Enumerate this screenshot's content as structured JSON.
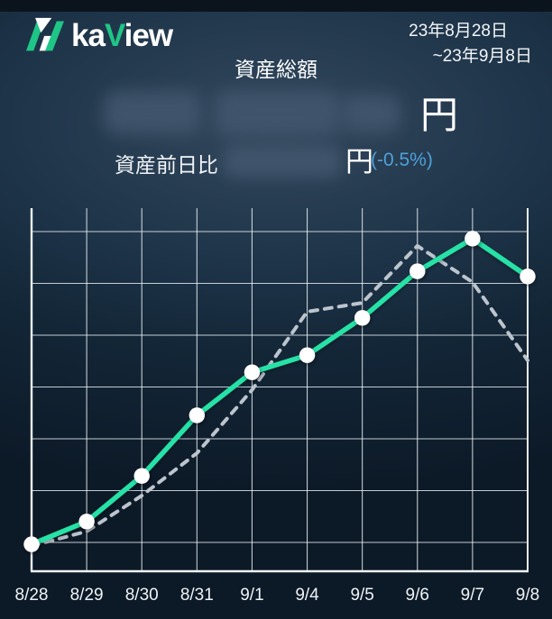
{
  "app": {
    "logo_ka": "ka",
    "logo_v": "V",
    "logo_iew": "iew"
  },
  "header": {
    "date_range_line1": "23年8月28日",
    "date_range_line2": "~23年9月8日"
  },
  "summary": {
    "title": "資産総額",
    "total_unit": "円",
    "total_value_redacted": true,
    "change_label": "資産前日比",
    "change_unit": "円",
    "change_value_redacted": true,
    "change_percent": "(-0.5%)"
  },
  "chart_data": {
    "type": "line",
    "title": "資産総額",
    "x_labels": [
      "8/28",
      "8/29",
      "8/30",
      "8/31",
      "9/1",
      "9/4",
      "9/5",
      "9/6",
      "9/7",
      "9/8"
    ],
    "series": [
      {
        "name": "asset-total-solid",
        "color": "#28e2a6",
        "line_style": "solid",
        "marker": "white-dot",
        "values": [
          0.52,
          0.96,
          1.84,
          3.01,
          3.84,
          4.17,
          4.89,
          5.79,
          6.42,
          5.69
        ]
      },
      {
        "name": "comparison-dashed",
        "color": "#bcc4cd",
        "line_style": "dashed",
        "marker": "none",
        "values": [
          0.49,
          0.77,
          1.46,
          2.28,
          3.5,
          5.01,
          5.18,
          6.28,
          5.58,
          4.07
        ]
      }
    ],
    "ylim": [
      0,
      7
    ],
    "y_axis_labels_visible": false,
    "grid": true,
    "legend": "none"
  },
  "colors": {
    "accent_green": "#28e2a6",
    "dashed_gray": "#bcc4cd",
    "change_blue": "#4da1d9",
    "grid_line": "rgba(240,248,252,0.8)",
    "axis_line": "#eef4f8",
    "topbar_bg": "#0b141d"
  }
}
